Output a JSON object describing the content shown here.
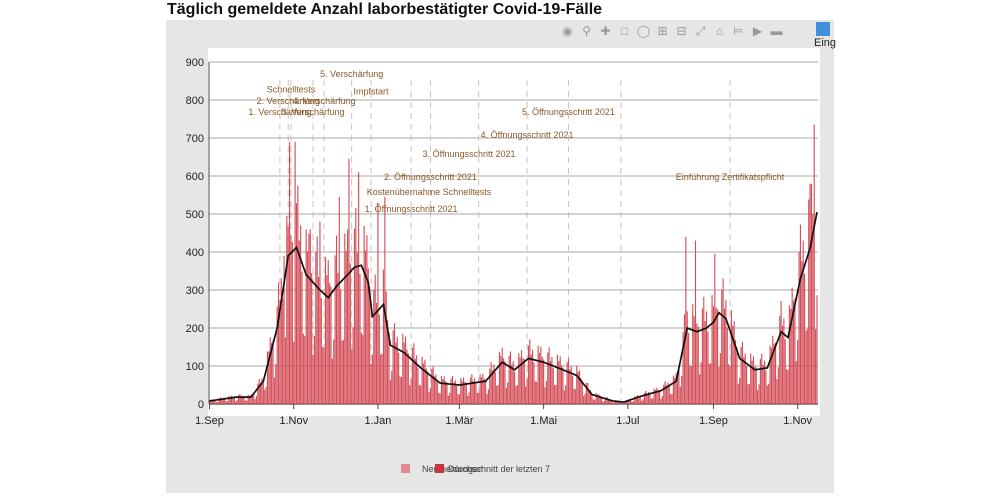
{
  "title": "Täglich gemeldete Anzahl laborbestätigter Covid-19-Fälle",
  "toolbar": {
    "icons": [
      "camera-icon",
      "zoom-icon",
      "pan-icon",
      "box-select-icon",
      "lasso-icon",
      "zoom-in-icon",
      "zoom-out-icon",
      "autoscale-icon",
      "home-icon",
      "spike-lines-icon",
      "hover-closest-icon",
      "hover-compare-icon"
    ],
    "logo_label": "Eing"
  },
  "chart_data": {
    "type": "bar",
    "xlabel": "",
    "ylabel": "",
    "x_start": "2020-09-01",
    "ylim": [
      0,
      900
    ],
    "yticks": [
      0,
      100,
      200,
      300,
      400,
      500,
      600,
      700,
      800,
      900
    ],
    "xticks": [
      {
        "label": "1.Sep",
        "date": "2020-09-01"
      },
      {
        "label": "1.Nov",
        "date": "2020-11-01"
      },
      {
        "label": "1.Jan",
        "date": "2021-01-01"
      },
      {
        "label": "1.Mär",
        "date": "2021-03-01"
      },
      {
        "label": "1.Mai",
        "date": "2021-05-01"
      },
      {
        "label": "1.Jul",
        "date": "2021-07-01"
      },
      {
        "label": "1.Sep",
        "date": "2021-09-01"
      },
      {
        "label": "1.Nov",
        "date": "2021-11-01"
      }
    ],
    "grid": true,
    "legend": {
      "placement": "bottom-center",
      "entries": [
        "Neumeldungen",
        "Durchschnitt der letzten 7"
      ]
    },
    "bar_color": "#d44d57",
    "line_color": "#111111",
    "average_anchors": [
      [
        "2020-09-01",
        8
      ],
      [
        "2020-09-20",
        18
      ],
      [
        "2020-10-01",
        18
      ],
      [
        "2020-10-10",
        60
      ],
      [
        "2020-10-20",
        200
      ],
      [
        "2020-10-28",
        390
      ],
      [
        "2020-11-03",
        412
      ],
      [
        "2020-11-10",
        340
      ],
      [
        "2020-11-20",
        300
      ],
      [
        "2020-11-26",
        280
      ],
      [
        "2020-12-02",
        310
      ],
      [
        "2020-12-10",
        340
      ],
      [
        "2020-12-15",
        360
      ],
      [
        "2020-12-20",
        365
      ],
      [
        "2020-12-25",
        320
      ],
      [
        "2020-12-28",
        230
      ],
      [
        "2021-01-05",
        262
      ],
      [
        "2021-01-10",
        155
      ],
      [
        "2021-01-20",
        135
      ],
      [
        "2021-02-01",
        95
      ],
      [
        "2021-02-15",
        55
      ],
      [
        "2021-03-01",
        50
      ],
      [
        "2021-03-20",
        60
      ],
      [
        "2021-04-01",
        110
      ],
      [
        "2021-04-10",
        90
      ],
      [
        "2021-04-20",
        120
      ],
      [
        "2021-05-01",
        110
      ],
      [
        "2021-05-15",
        90
      ],
      [
        "2021-05-25",
        75
      ],
      [
        "2021-06-05",
        25
      ],
      [
        "2021-06-20",
        8
      ],
      [
        "2021-06-28",
        5
      ],
      [
        "2021-07-10",
        20
      ],
      [
        "2021-07-25",
        35
      ],
      [
        "2021-08-05",
        60
      ],
      [
        "2021-08-13",
        200
      ],
      [
        "2021-08-20",
        190
      ],
      [
        "2021-08-27",
        200
      ],
      [
        "2021-09-01",
        215
      ],
      [
        "2021-09-05",
        240
      ],
      [
        "2021-09-10",
        225
      ],
      [
        "2021-09-20",
        120
      ],
      [
        "2021-10-01",
        90
      ],
      [
        "2021-10-10",
        95
      ],
      [
        "2021-10-20",
        190
      ],
      [
        "2021-10-25",
        175
      ],
      [
        "2021-11-03",
        330
      ],
      [
        "2021-11-10",
        410
      ],
      [
        "2021-11-15",
        505
      ]
    ],
    "peaks": [
      [
        "2020-10-25",
        390
      ],
      [
        "2020-10-29",
        690
      ],
      [
        "2020-11-02",
        690
      ],
      [
        "2020-11-06",
        470
      ],
      [
        "2020-11-13",
        460
      ],
      [
        "2020-11-20",
        480
      ],
      [
        "2020-12-04",
        545
      ],
      [
        "2020-12-11",
        645
      ],
      [
        "2020-12-18",
        610
      ],
      [
        "2021-01-01",
        530
      ],
      [
        "2021-01-06",
        545
      ],
      [
        "2021-08-12",
        440
      ],
      [
        "2021-08-19",
        430
      ],
      [
        "2021-09-02",
        395
      ],
      [
        "2021-11-10",
        580
      ],
      [
        "2021-11-13",
        735
      ],
      [
        "2021-11-16",
        615
      ]
    ],
    "annotations": [
      {
        "text": "1. Verschärfung",
        "date": "2020-10-22",
        "y": 760
      },
      {
        "text": "2. Verschärfung",
        "date": "2020-10-28",
        "y": 790
      },
      {
        "text": "Schnelltests",
        "date": "2020-10-30",
        "y": 820
      },
      {
        "text": "3. Verschärfung",
        "date": "2020-11-15",
        "y": 760
      },
      {
        "text": "4. Verschärfung",
        "date": "2020-11-23",
        "y": 790
      },
      {
        "text": "5. Verschärfung",
        "date": "2020-12-13",
        "y": 860
      },
      {
        "text": "Impfstart",
        "date": "2020-12-27",
        "y": 815
      },
      {
        "text": "2. Öffnungsschritt 2021",
        "date": "2021-02-08",
        "y": 590
      },
      {
        "text": "Kostenübernahme Schnelltests",
        "date": "2021-02-07",
        "y": 550
      },
      {
        "text": "1. Öffnungsschritt 2021",
        "date": "2021-01-25",
        "y": 505
      },
      {
        "text": "3. Öffnungsschritt 2021",
        "date": "2021-03-08",
        "y": 650
      },
      {
        "text": "4. Öffnungsschritt 2021",
        "date": "2021-04-19",
        "y": 700
      },
      {
        "text": "5. Öffnungsschritt 2021",
        "date": "2021-05-19",
        "y": 760
      },
      {
        "text": "Einführung Zertifikatspflicht",
        "date": "2021-09-13",
        "y": 590
      }
    ],
    "event_lines": [
      "2020-10-22",
      "2020-10-28",
      "2020-10-30",
      "2020-11-15",
      "2020-11-23",
      "2020-12-13",
      "2020-12-27",
      "2021-01-25",
      "2021-02-08",
      "2021-03-15",
      "2021-04-19",
      "2021-05-19",
      "2021-06-26",
      "2021-09-13"
    ]
  }
}
